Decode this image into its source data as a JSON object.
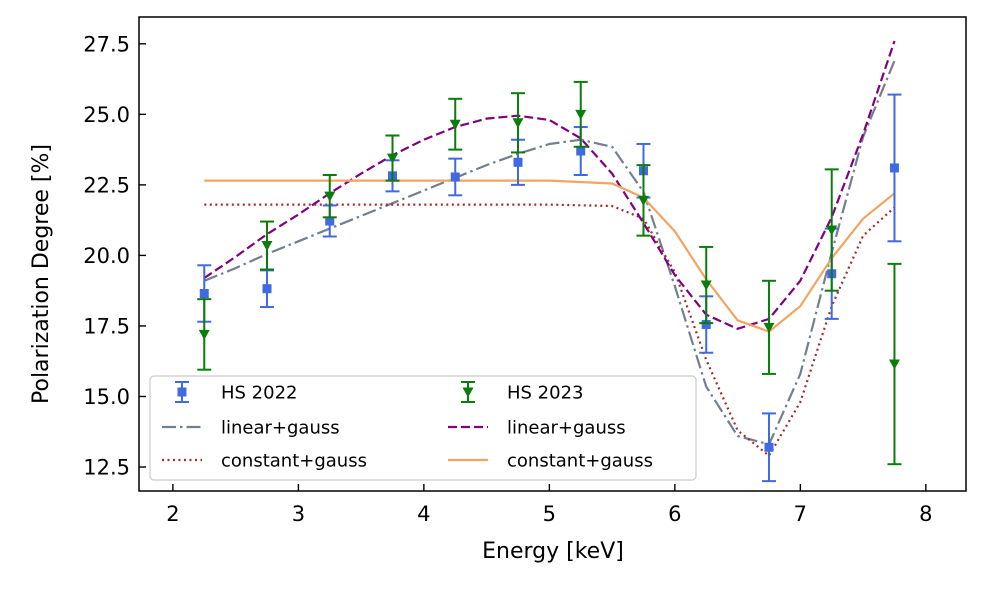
{
  "chart_data": {
    "type": "scatter",
    "xlabel": "Energy [keV]",
    "ylabel": "Polarization Degree [%]",
    "xlim": [
      1.73,
      8.32
    ],
    "ylim": [
      11.65,
      28.45
    ],
    "xticks": [
      2,
      3,
      4,
      5,
      6,
      7,
      8
    ],
    "yticks": [
      12.5,
      15.0,
      17.5,
      20.0,
      22.5,
      25.0,
      27.5
    ],
    "xtick_labels": [
      "2",
      "3",
      "4",
      "5",
      "6",
      "7",
      "8"
    ],
    "ytick_labels": [
      "12.5",
      "15.0",
      "17.5",
      "20.0",
      "22.5",
      "25.0",
      "27.5"
    ],
    "legend_position": "lower-left",
    "colors": {
      "hs2022": "#4169e1",
      "hs2023": "#0a7d0a",
      "fit2022_linear": "#708090",
      "fit2022_constant": "#a52a2a",
      "fit2023_linear": "#800080",
      "fit2023_constant": "#f4a460"
    },
    "series": [
      {
        "name": "HS 2022",
        "marker": "square",
        "x": [
          2.25,
          2.75,
          3.25,
          3.75,
          4.25,
          4.75,
          5.25,
          5.75,
          6.25,
          6.75,
          7.25,
          7.75
        ],
        "y": [
          18.65,
          18.82,
          21.22,
          22.82,
          22.78,
          23.3,
          23.7,
          23.0,
          17.55,
          13.2,
          19.35,
          23.1
        ],
        "err": [
          1.0,
          0.65,
          0.55,
          0.55,
          0.65,
          0.8,
          0.85,
          0.95,
          1.0,
          1.2,
          1.6,
          2.6
        ]
      },
      {
        "name": "HS 2023",
        "marker": "triangle-down",
        "x": [
          2.25,
          2.75,
          3.25,
          3.75,
          4.25,
          4.75,
          5.25,
          5.75,
          6.25,
          6.75,
          7.25,
          7.75
        ],
        "y": [
          17.2,
          20.35,
          22.1,
          23.45,
          24.65,
          24.7,
          25.0,
          21.95,
          18.95,
          17.45,
          20.9,
          16.15
        ],
        "err": [
          1.25,
          0.85,
          0.75,
          0.8,
          0.9,
          1.05,
          1.15,
          1.25,
          1.35,
          1.65,
          2.15,
          3.55
        ]
      }
    ],
    "fit_lines": [
      {
        "name": "linear+gauss",
        "dataset": "HS 2022",
        "style": "dashdot",
        "x": [
          2.25,
          2.5,
          2.75,
          3.0,
          3.25,
          3.5,
          3.75,
          4.0,
          4.25,
          4.5,
          4.75,
          5.0,
          5.25,
          5.5,
          5.75,
          6.0,
          6.25,
          6.5,
          6.75,
          7.0,
          7.25,
          7.5,
          7.75
        ],
        "y": [
          19.1,
          19.55,
          20.05,
          20.5,
          20.95,
          21.4,
          21.85,
          22.3,
          22.75,
          23.2,
          23.6,
          23.95,
          24.1,
          23.85,
          22.25,
          18.9,
          15.35,
          13.6,
          13.3,
          15.8,
          20.1,
          24.2,
          26.9
        ]
      },
      {
        "name": "constant+gauss",
        "dataset": "HS 2022",
        "style": "dotted",
        "x": [
          2.25,
          3.0,
          4.0,
          5.0,
          5.5,
          5.75,
          6.0,
          6.25,
          6.5,
          6.75,
          7.0,
          7.25,
          7.5,
          7.75
        ],
        "y": [
          21.8,
          21.8,
          21.8,
          21.8,
          21.75,
          21.3,
          19.4,
          16.3,
          13.8,
          12.9,
          14.8,
          18.2,
          20.7,
          21.7
        ]
      },
      {
        "name": "linear+gauss",
        "dataset": "HS 2023",
        "style": "dashed",
        "x": [
          2.25,
          2.5,
          2.75,
          3.0,
          3.25,
          3.5,
          3.75,
          4.0,
          4.25,
          4.5,
          4.75,
          5.0,
          5.25,
          5.5,
          5.75,
          6.0,
          6.25,
          6.5,
          6.75,
          7.0,
          7.25,
          7.5,
          7.75
        ],
        "y": [
          19.2,
          19.95,
          20.75,
          21.45,
          22.2,
          22.9,
          23.55,
          24.1,
          24.55,
          24.85,
          24.95,
          24.8,
          24.15,
          22.9,
          21.15,
          19.3,
          17.9,
          17.4,
          17.75,
          19.1,
          21.35,
          24.3,
          27.6
        ]
      },
      {
        "name": "constant+gauss",
        "dataset": "HS 2023",
        "style": "solid",
        "x": [
          2.25,
          3.0,
          4.0,
          5.0,
          5.5,
          5.75,
          6.0,
          6.25,
          6.5,
          6.75,
          7.0,
          7.25,
          7.5,
          7.75
        ],
        "y": [
          22.65,
          22.65,
          22.65,
          22.65,
          22.55,
          22.05,
          20.85,
          19.15,
          17.7,
          17.3,
          18.2,
          19.9,
          21.3,
          22.2
        ]
      }
    ],
    "legend": [
      {
        "label": "HS 2022",
        "kind": "errorbar-square",
        "color_key": "hs2022"
      },
      {
        "label": "HS 2023",
        "kind": "errorbar-triangle",
        "color_key": "hs2023"
      },
      {
        "label": "linear+gauss",
        "kind": "dashdot",
        "color_key": "fit2022_linear"
      },
      {
        "label": "linear+gauss",
        "kind": "dashed",
        "color_key": "fit2023_linear"
      },
      {
        "label": "constant+gauss",
        "kind": "dotted",
        "color_key": "fit2022_constant"
      },
      {
        "label": "constant+gauss",
        "kind": "solid",
        "color_key": "fit2023_constant"
      }
    ]
  }
}
